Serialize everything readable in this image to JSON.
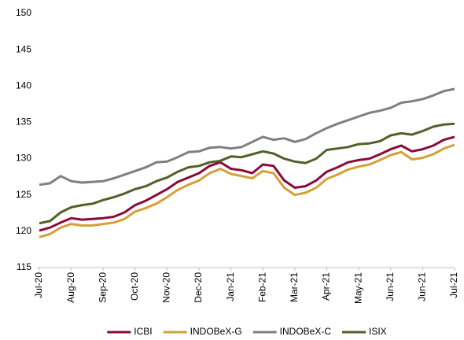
{
  "chart_data": {
    "type": "line",
    "categories": [
      "Jul-20",
      null,
      null,
      "Aug-20",
      null,
      null,
      "Sep-20",
      null,
      null,
      "Oct-20",
      null,
      null,
      "Nov-20",
      null,
      null,
      "Dec-20",
      null,
      null,
      "Jan-21",
      null,
      null,
      "Feb-21",
      null,
      null,
      "Mar-21",
      null,
      null,
      "Apr-21",
      null,
      null,
      "May-21",
      null,
      null,
      "Jun-21",
      null,
      null,
      "Jun-21",
      null,
      null,
      "Jul-21"
    ],
    "series": [
      {
        "name": "ICBI",
        "color": "#8b0a3a",
        "values": [
          120.1,
          120.5,
          121.2,
          121.8,
          121.6,
          121.7,
          121.8,
          122.0,
          122.6,
          123.6,
          124.2,
          125.0,
          125.8,
          126.8,
          127.4,
          128.0,
          129.0,
          129.5,
          128.6,
          128.4,
          128.0,
          129.2,
          129.0,
          127.0,
          126.0,
          126.2,
          127.0,
          128.2,
          128.8,
          129.5,
          129.8,
          130.0,
          130.6,
          131.3,
          131.8,
          131.0,
          131.3,
          131.8,
          132.6,
          133.0
        ]
      },
      {
        "name": "INDOBeX-G",
        "color": "#d4a037",
        "values": [
          119.2,
          119.6,
          120.5,
          121.0,
          120.8,
          120.8,
          121.0,
          121.2,
          121.7,
          122.7,
          123.2,
          123.8,
          124.7,
          125.7,
          126.4,
          127.0,
          128.0,
          128.6,
          127.9,
          127.6,
          127.3,
          128.3,
          128.0,
          126.0,
          125.0,
          125.3,
          126.0,
          127.2,
          127.8,
          128.5,
          128.9,
          129.2,
          129.8,
          130.5,
          130.9,
          129.9,
          130.1,
          130.6,
          131.4,
          131.9
        ]
      },
      {
        "name": "INDOBeX-C",
        "color": "#7f7f7f",
        "values": [
          126.4,
          126.6,
          127.6,
          126.9,
          126.7,
          126.8,
          126.9,
          127.3,
          127.8,
          128.3,
          128.8,
          129.5,
          129.6,
          130.2,
          130.9,
          131.0,
          131.5,
          131.6,
          131.4,
          131.6,
          132.3,
          133.0,
          132.6,
          132.8,
          132.3,
          132.7,
          133.5,
          134.2,
          134.8,
          135.3,
          135.8,
          136.3,
          136.6,
          137.0,
          137.7,
          137.9,
          138.2,
          138.7,
          139.3,
          139.6
        ]
      },
      {
        "name": "ISIX",
        "color": "#4f6228",
        "values": [
          121.1,
          121.4,
          122.6,
          123.3,
          123.6,
          123.8,
          124.3,
          124.7,
          125.2,
          125.8,
          126.2,
          126.9,
          127.4,
          128.2,
          128.8,
          129.0,
          129.5,
          129.7,
          130.3,
          130.2,
          130.6,
          131.0,
          130.7,
          130.0,
          129.6,
          129.4,
          130.0,
          131.2,
          131.4,
          131.6,
          132.0,
          132.1,
          132.4,
          133.2,
          133.5,
          133.3,
          133.8,
          134.4,
          134.7,
          134.8
        ]
      }
    ],
    "ylim": [
      115,
      150
    ],
    "yticks": [
      115,
      120,
      125,
      130,
      135,
      140,
      145,
      150
    ],
    "grid": false,
    "legend": "bottom"
  }
}
